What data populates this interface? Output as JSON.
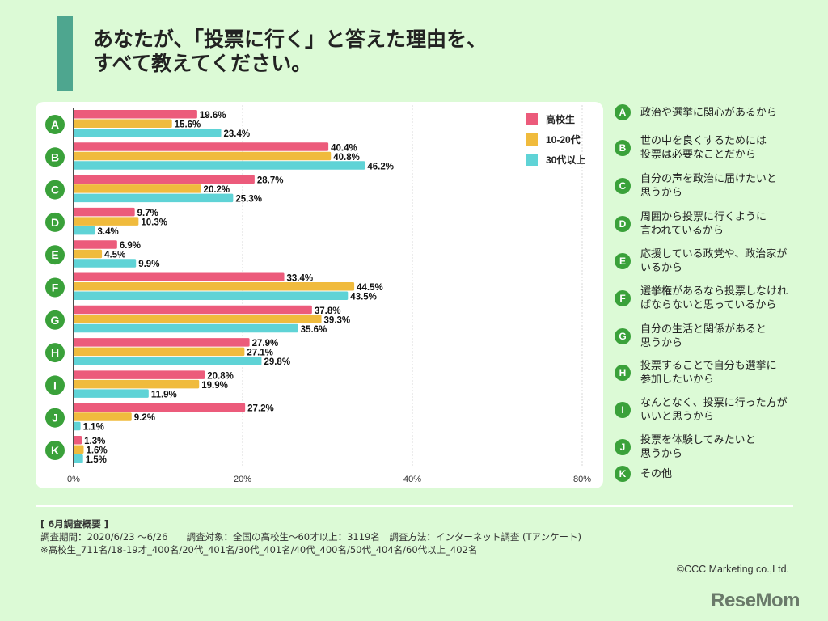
{
  "title": {
    "line1": "あなたが、「投票に行く」と答えた理由を、",
    "line2": "すべて教えてください。"
  },
  "chart_data": {
    "type": "bar",
    "orientation": "horizontal",
    "title": "あなたが、「投票に行く」と答えた理由を、すべて教えてください。",
    "categories": [
      "A",
      "B",
      "C",
      "D",
      "E",
      "F",
      "G",
      "H",
      "I",
      "J",
      "K"
    ],
    "series": [
      {
        "name": "高校生",
        "color": "#ec5b7b",
        "values": [
          19.6,
          40.4,
          28.7,
          9.7,
          6.9,
          33.4,
          37.8,
          27.9,
          20.8,
          27.2,
          1.3
        ]
      },
      {
        "name": "10-20代",
        "color": "#f0bb3d",
        "values": [
          15.6,
          40.8,
          20.2,
          10.3,
          4.5,
          44.5,
          39.3,
          27.1,
          19.9,
          9.2,
          1.6
        ]
      },
      {
        "name": "30代以上",
        "color": "#5fd3d6",
        "values": [
          23.4,
          46.2,
          25.3,
          3.4,
          9.9,
          43.5,
          35.6,
          29.8,
          11.9,
          1.1,
          1.5
        ]
      }
    ],
    "x_tick_labels": [
      "0%",
      "20%",
      "40%",
      "80%"
    ],
    "xlabel": "",
    "ylabel": "",
    "grid": true,
    "legend_position": "top-right",
    "value_suffix": "%"
  },
  "reasons": [
    {
      "key": "A",
      "text": "政治や選挙に関心があるから"
    },
    {
      "key": "B",
      "text": "世の中を良くするためには\n投票は必要なことだから"
    },
    {
      "key": "C",
      "text": "自分の声を政治に届けたいと\n思うから"
    },
    {
      "key": "D",
      "text": "周囲から投票に行くように\n言われているから"
    },
    {
      "key": "E",
      "text": "応援している政党や、政治家が\nいるから"
    },
    {
      "key": "F",
      "text": "選挙権があるなら投票しなけれ\nばならないと思っているから"
    },
    {
      "key": "G",
      "text": "自分の生活と関係があると\n思うから"
    },
    {
      "key": "H",
      "text": "投票することで自分も選挙に\n参加したいから"
    },
    {
      "key": "I",
      "text": "なんとなく、投票に行った方が\nいいと思うから"
    },
    {
      "key": "J",
      "text": "投票を体験してみたいと\n思うから"
    },
    {
      "key": "K",
      "text": "その他"
    }
  ],
  "notes": {
    "heading": "[ 6月調査概要 ]",
    "line1": "調査期間：2020/6/23 ～6/26　　調査対象：全国の高校生～60才以上：3119名　調査方法：インターネット調査 (Tアンケート)",
    "line2": "※高校生_711名/18-19才_400名/20代_401名/30代_401名/40代_400名/50代_404名/60代以上_402名"
  },
  "copyright": "©CCC Marketing co.,Ltd.",
  "logo": "ReseMom"
}
